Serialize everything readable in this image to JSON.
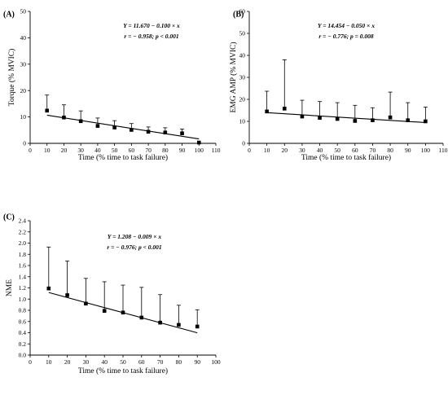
{
  "chart_data": [
    {
      "type": "scatter",
      "panel_label": "(A)",
      "x": [
        10,
        20,
        30,
        40,
        50,
        60,
        70,
        80,
        90,
        100
      ],
      "y": [
        12.4,
        9.8,
        8.4,
        6.6,
        6.0,
        5.1,
        4.4,
        4.1,
        3.8,
        0.3
      ],
      "error_upper": [
        18.3,
        14.6,
        12.3,
        9.6,
        8.6,
        7.5,
        6.2,
        5.9,
        5.4,
        null
      ],
      "fit": {
        "intercept": 11.67,
        "slope": -0.1,
        "x_range": [
          10,
          100
        ]
      },
      "annotation": [
        "Y = 11.670 − 0.100 × x",
        "r = − 0.958; p < 0.001"
      ],
      "xlabel": "Time (% time to task failure)",
      "ylabel": "Torque (% MVIC)",
      "xlim": [
        0,
        110
      ],
      "ylim": [
        0,
        50
      ],
      "xticks": [
        "0",
        "10",
        "20",
        "30",
        "40",
        "50",
        "60",
        "70",
        "80",
        "90",
        "100",
        "110"
      ],
      "yticks": [
        "0",
        "10",
        "20",
        "30",
        "40",
        "50"
      ]
    },
    {
      "type": "scatter",
      "panel_label": "(B)",
      "x": [
        10,
        20,
        30,
        40,
        50,
        60,
        70,
        80,
        90,
        100
      ],
      "y": [
        14.5,
        15.8,
        12.2,
        11.6,
        11.1,
        10.2,
        10.5,
        11.8,
        10.5,
        10.0
      ],
      "error_upper": [
        23.7,
        38.0,
        19.6,
        19.0,
        18.5,
        17.3,
        16.2,
        23.3,
        18.5,
        16.5
      ],
      "fit": {
        "intercept": 14.454,
        "slope": -0.05,
        "x_range": [
          10,
          100
        ]
      },
      "annotation": [
        "Y = 14.454 − 0.050 × x",
        "r = − 0.776; p = 0.008"
      ],
      "xlabel": "Time (% time to task failure)",
      "ylabel": "EMG AMP (% MVIC)",
      "xlim": [
        0,
        110
      ],
      "ylim": [
        0,
        60
      ],
      "xticks": [
        "0",
        "10",
        "20",
        "30",
        "40",
        "50",
        "60",
        "70",
        "80",
        "90",
        "100",
        "110"
      ],
      "yticks": [
        "0",
        "10",
        "20",
        "30",
        "40",
        "50",
        "60"
      ]
    },
    {
      "type": "scatter",
      "panel_label": "(C)",
      "x": [
        10,
        20,
        30,
        40,
        50,
        60,
        70,
        80,
        90
      ],
      "y": [
        1.19,
        1.07,
        0.92,
        0.79,
        0.76,
        0.67,
        0.58,
        0.54,
        0.51
      ],
      "error_upper": [
        1.93,
        1.68,
        1.37,
        1.31,
        1.25,
        1.21,
        1.08,
        0.89,
        0.81
      ],
      "fit": {
        "intercept": 1.208,
        "slope": -0.009,
        "x_range": [
          10,
          90
        ]
      },
      "annotation": [
        "Y = 1.208 − 0.009 × x",
        "r = − 0.976; p < 0.001"
      ],
      "xlabel": "Time (% time to task failure)",
      "ylabel": "NME",
      "xlim": [
        0,
        100
      ],
      "ylim": [
        0,
        2.4
      ],
      "xticks": [
        "0",
        "10",
        "20",
        "30",
        "40",
        "50",
        "60",
        "70",
        "80",
        "90",
        "100"
      ],
      "yticks": [
        "0.0",
        "0.2",
        "0.4",
        "0.6",
        "0.8",
        "1.0",
        "1.2",
        "1.4",
        "1.6",
        "1.8",
        "2.0",
        "2.2",
        "2.4"
      ]
    }
  ]
}
